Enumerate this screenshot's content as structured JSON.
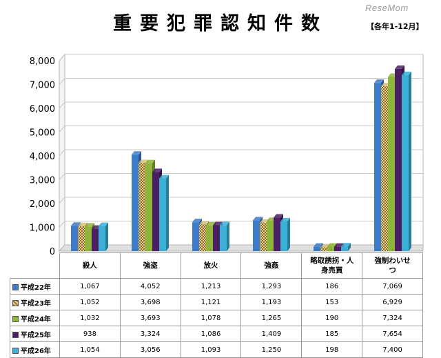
{
  "header": {
    "title": "重要犯罪認知件数",
    "subtitle": "【各年1-12月】",
    "watermark": "ReseMom"
  },
  "colors": {
    "series": [
      "#3d7cc9",
      "#b99a4b",
      "#8fb63a",
      "#4a1f63",
      "#3ab0d6"
    ],
    "swatch_pattern_series_index": 1
  },
  "chart_data": {
    "type": "bar",
    "categories": [
      "殺人",
      "強盗",
      "放火",
      "強姦",
      "略取誘拐・人身売買",
      "強制わいせつ"
    ],
    "category_labels_display": [
      [
        "殺人"
      ],
      [
        "強盗"
      ],
      [
        "放火"
      ],
      [
        "強姦"
      ],
      [
        "略取誘拐・人",
        "身売買"
      ],
      [
        "強制わいせ",
        "つ"
      ]
    ],
    "series": [
      {
        "name": "平成22年",
        "values": [
          1067,
          4052,
          1213,
          1293,
          186,
          7069
        ]
      },
      {
        "name": "平成23年",
        "values": [
          1052,
          3698,
          1121,
          1193,
          153,
          6929
        ]
      },
      {
        "name": "平成24年",
        "values": [
          1032,
          3693,
          1078,
          1265,
          190,
          7324
        ]
      },
      {
        "name": "平成25年",
        "values": [
          938,
          3324,
          1086,
          1409,
          185,
          7654
        ]
      },
      {
        "name": "平成26年",
        "values": [
          1054,
          3056,
          1093,
          1250,
          198,
          7400
        ]
      }
    ],
    "value_labels": [
      [
        "1,067",
        "4,052",
        "1,213",
        "1,293",
        "186",
        "7,069"
      ],
      [
        "1,052",
        "3,698",
        "1,121",
        "1,193",
        "153",
        "6,929"
      ],
      [
        "1,032",
        "3,693",
        "1,078",
        "1,265",
        "190",
        "7,324"
      ],
      [
        "938",
        "3,324",
        "1,086",
        "1,409",
        "185",
        "7,654"
      ],
      [
        "1,054",
        "3,056",
        "1,093",
        "1,250",
        "198",
        "7,400"
      ]
    ],
    "yticks": [
      "0",
      "1,000",
      "2,000",
      "3,000",
      "4,000",
      "5,000",
      "6,000",
      "7,000",
      "8,000"
    ],
    "ylim": [
      0,
      8000
    ],
    "grid": true,
    "legend": "data-table",
    "style": "3d-clustered-bar"
  }
}
